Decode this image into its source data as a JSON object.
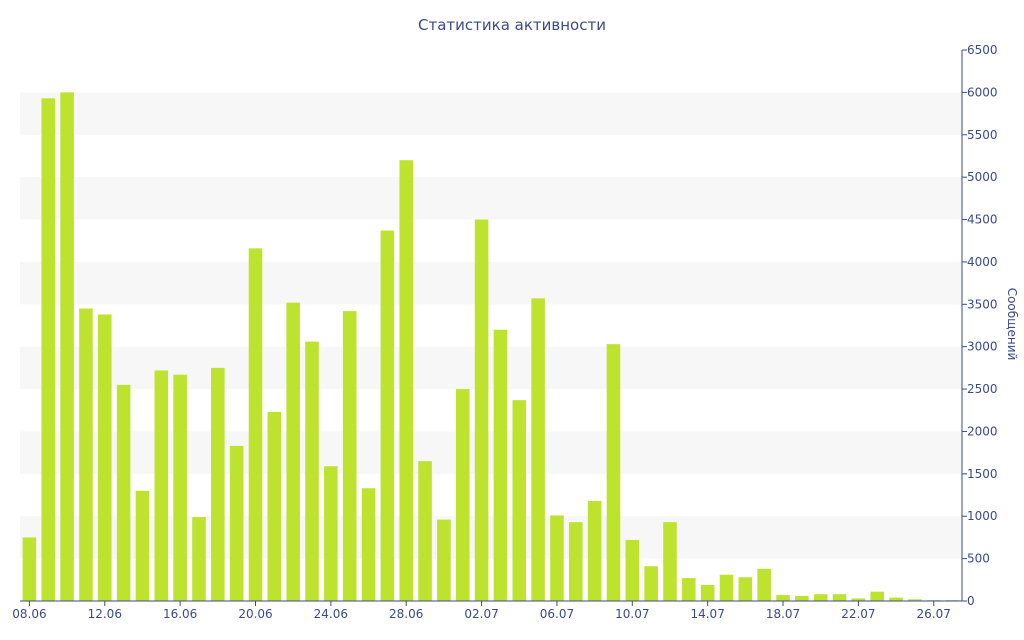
{
  "chart_data": {
    "type": "bar",
    "title": "Статистика активности",
    "ylabel": "Сообщений",
    "xlabel": "",
    "y_axis_side": "right",
    "ylim": [
      0,
      6500
    ],
    "y_ticks": [
      0,
      500,
      1000,
      1500,
      2000,
      2500,
      3000,
      3500,
      4000,
      4500,
      5000,
      5500,
      6000,
      6500
    ],
    "x_tick_labels": [
      "08.06",
      "12.06",
      "16.06",
      "20.06",
      "24.06",
      "28.06",
      "02.07",
      "06.07",
      "10.07",
      "14.07",
      "18.07",
      "22.07",
      "26.07"
    ],
    "x_tick_every": 4,
    "grid": "alternating horizontal bands",
    "bar_color": "#bde32f",
    "band_color": "#f7f7f7",
    "axis_color": "#3a4b8c",
    "categories": [
      "08.06",
      "09.06",
      "10.06",
      "11.06",
      "12.06",
      "13.06",
      "14.06",
      "15.06",
      "16.06",
      "17.06",
      "18.06",
      "19.06",
      "20.06",
      "21.06",
      "22.06",
      "23.06",
      "24.06",
      "25.06",
      "26.06",
      "27.06",
      "28.06",
      "29.06",
      "30.06",
      "01.07",
      "02.07",
      "03.07",
      "04.07",
      "05.07",
      "06.07",
      "07.07",
      "08.07",
      "09.07",
      "10.07",
      "11.07",
      "12.07",
      "13.07",
      "14.07",
      "15.07",
      "16.07",
      "17.07",
      "18.07",
      "19.07",
      "20.07",
      "21.07",
      "22.07",
      "23.07",
      "24.07",
      "25.07",
      "26.07",
      "27.07"
    ],
    "values": [
      750,
      5930,
      6000,
      3450,
      3380,
      2550,
      1300,
      2720,
      2670,
      990,
      2750,
      1830,
      4160,
      2230,
      3520,
      3060,
      1590,
      3420,
      1330,
      4370,
      5200,
      1650,
      960,
      2500,
      4500,
      3200,
      2370,
      3570,
      1010,
      930,
      1180,
      3030,
      720,
      410,
      930,
      270,
      190,
      310,
      280,
      380,
      70,
      60,
      80,
      80,
      30,
      110,
      40,
      20,
      10,
      10
    ]
  }
}
